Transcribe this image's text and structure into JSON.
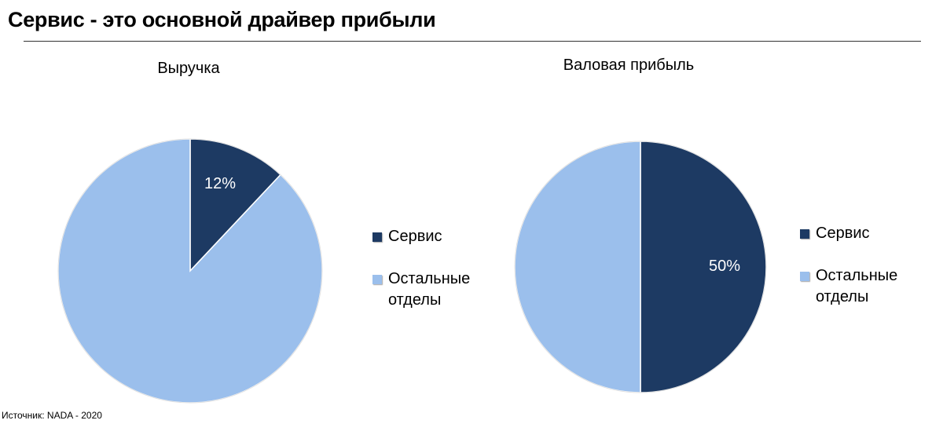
{
  "header": {
    "title": "Сервис - это основной драйвер прибыли"
  },
  "source": "Источник: NADA - 2020",
  "colors": {
    "service": "#1d3a63",
    "other": "#9bbfec"
  },
  "chart_data": [
    {
      "type": "pie",
      "title": "Выручка",
      "labels": [
        "Сервис",
        "Остальные отделы"
      ],
      "values": [
        12,
        88
      ],
      "data_labels": [
        "12%",
        ""
      ],
      "legend": [
        "Сервис",
        "Остальные отделы"
      ],
      "legend_position": "right"
    },
    {
      "type": "pie",
      "title": "Валовая прибыль",
      "labels": [
        "Сервис",
        "Остальные отделы"
      ],
      "values": [
        50,
        50
      ],
      "data_labels": [
        "50%",
        ""
      ],
      "legend": [
        "Сервис",
        "Остальные отделы"
      ],
      "legend_position": "right"
    }
  ]
}
